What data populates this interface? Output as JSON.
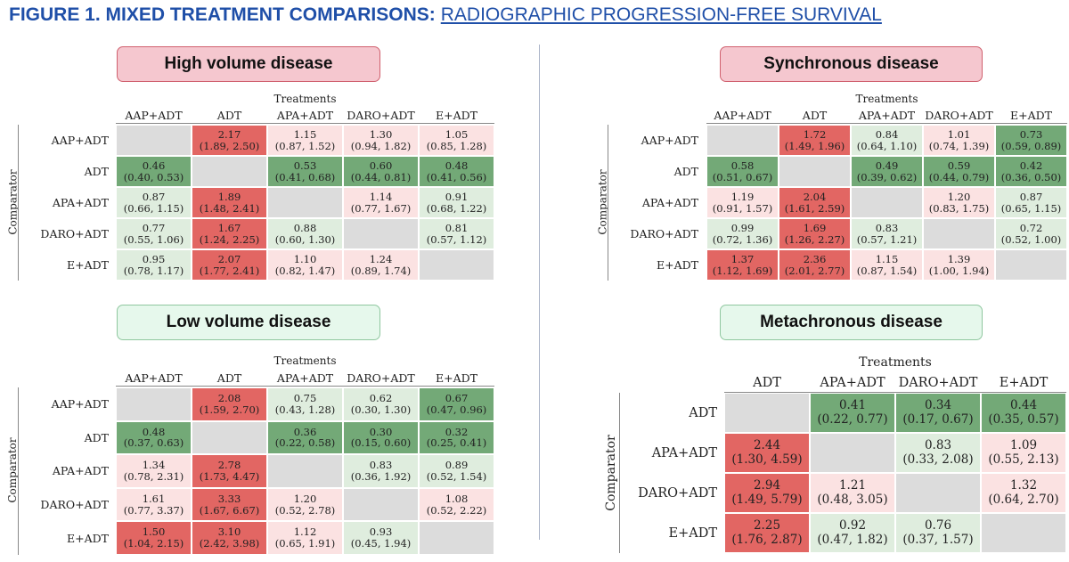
{
  "figure": {
    "title_bold": "FIGURE 1. MIXED TREATMENT COMPARISONS:",
    "title_link": "RADIOGRAPHIC PROGRESSION-FREE SURVIVAL"
  },
  "colors": {
    "significant_higher": "#e26663",
    "nonsignificant_higher": "#fbe2e2",
    "significant_lower": "#73a977",
    "nonsignificant_lower": "#dfedde",
    "diagonal": "#dcdcdc",
    "title_blue": "#1f4fa8"
  },
  "chart_data": [
    {
      "type": "heatmap",
      "title": "High volume disease",
      "xlabel": "Treatments",
      "ylabel": "Comparator",
      "columns": [
        "AAP+ADT",
        "ADT",
        "APA+ADT",
        "DARO+ADT",
        "E+ADT"
      ],
      "rows": [
        {
          "label": "AAP+ADT",
          "cells": [
            null,
            {
              "v": "2.17",
              "ci": "(1.89, 2.50)",
              "c": "red"
            },
            {
              "v": "1.15",
              "ci": "(0.87, 1.52)",
              "c": "lred"
            },
            {
              "v": "1.30",
              "ci": "(0.94, 1.82)",
              "c": "lred"
            },
            {
              "v": "1.05",
              "ci": "(0.85, 1.28)",
              "c": "lred"
            }
          ]
        },
        {
          "label": "ADT",
          "cells": [
            {
              "v": "0.46",
              "ci": "(0.40, 0.53)",
              "c": "green"
            },
            null,
            {
              "v": "0.53",
              "ci": "(0.41, 0.68)",
              "c": "green"
            },
            {
              "v": "0.60",
              "ci": "(0.44, 0.81)",
              "c": "green"
            },
            {
              "v": "0.48",
              "ci": "(0.41, 0.56)",
              "c": "green"
            }
          ]
        },
        {
          "label": "APA+ADT",
          "cells": [
            {
              "v": "0.87",
              "ci": "(0.66, 1.15)",
              "c": "lgreen"
            },
            {
              "v": "1.89",
              "ci": "(1.48, 2.41)",
              "c": "red"
            },
            null,
            {
              "v": "1.14",
              "ci": "(0.77, 1.67)",
              "c": "lred"
            },
            {
              "v": "0.91",
              "ci": "(0.68, 1.22)",
              "c": "lgreen"
            }
          ]
        },
        {
          "label": "DARO+ADT",
          "cells": [
            {
              "v": "0.77",
              "ci": "(0.55, 1.06)",
              "c": "lgreen"
            },
            {
              "v": "1.67",
              "ci": "(1.24, 2.25)",
              "c": "red"
            },
            {
              "v": "0.88",
              "ci": "(0.60, 1.30)",
              "c": "lgreen"
            },
            null,
            {
              "v": "0.81",
              "ci": "(0.57, 1.12)",
              "c": "lgreen"
            }
          ]
        },
        {
          "label": "E+ADT",
          "cells": [
            {
              "v": "0.95",
              "ci": "(0.78, 1.17)",
              "c": "lgreen"
            },
            {
              "v": "2.07",
              "ci": "(1.77, 2.41)",
              "c": "red"
            },
            {
              "v": "1.10",
              "ci": "(0.82, 1.47)",
              "c": "lred"
            },
            {
              "v": "1.24",
              "ci": "(0.89, 1.74)",
              "c": "lred"
            },
            null
          ]
        }
      ]
    },
    {
      "type": "heatmap",
      "title": "Synchronous disease",
      "xlabel": "Treatments",
      "ylabel": "Comparator",
      "columns": [
        "AAP+ADT",
        "ADT",
        "APA+ADT",
        "DARO+ADT",
        "E+ADT"
      ],
      "rows": [
        {
          "label": "AAP+ADT",
          "cells": [
            null,
            {
              "v": "1.72",
              "ci": "(1.49, 1.96)",
              "c": "red"
            },
            {
              "v": "0.84",
              "ci": "(0.64, 1.10)",
              "c": "lgreen"
            },
            {
              "v": "1.01",
              "ci": "(0.74, 1.39)",
              "c": "lred"
            },
            {
              "v": "0.73",
              "ci": "(0.59, 0.89)",
              "c": "green"
            }
          ]
        },
        {
          "label": "ADT",
          "cells": [
            {
              "v": "0.58",
              "ci": "(0.51, 0.67)",
              "c": "green"
            },
            null,
            {
              "v": "0.49",
              "ci": "(0.39, 0.62)",
              "c": "green"
            },
            {
              "v": "0.59",
              "ci": "(0.44, 0.79)",
              "c": "green"
            },
            {
              "v": "0.42",
              "ci": "(0.36, 0.50)",
              "c": "green"
            }
          ]
        },
        {
          "label": "APA+ADT",
          "cells": [
            {
              "v": "1.19",
              "ci": "(0.91, 1.57)",
              "c": "lred"
            },
            {
              "v": "2.04",
              "ci": "(1.61, 2.59)",
              "c": "red"
            },
            null,
            {
              "v": "1.20",
              "ci": "(0.83, 1.75)",
              "c": "lred"
            },
            {
              "v": "0.87",
              "ci": "(0.65, 1.15)",
              "c": "lgreen"
            }
          ]
        },
        {
          "label": "DARO+ADT",
          "cells": [
            {
              "v": "0.99",
              "ci": "(0.72, 1.36)",
              "c": "lgreen"
            },
            {
              "v": "1.69",
              "ci": "(1.26, 2.27)",
              "c": "red"
            },
            {
              "v": "0.83",
              "ci": "(0.57, 1.21)",
              "c": "lgreen"
            },
            null,
            {
              "v": "0.72",
              "ci": "(0.52, 1.00)",
              "c": "lgreen"
            }
          ]
        },
        {
          "label": "E+ADT",
          "cells": [
            {
              "v": "1.37",
              "ci": "(1.12, 1.69)",
              "c": "red"
            },
            {
              "v": "2.36",
              "ci": "(2.01, 2.77)",
              "c": "red"
            },
            {
              "v": "1.15",
              "ci": "(0.87, 1.54)",
              "c": "lred"
            },
            {
              "v": "1.39",
              "ci": "(1.00, 1.94)",
              "c": "lred"
            },
            null
          ]
        }
      ]
    },
    {
      "type": "heatmap",
      "title": "Low volume disease",
      "xlabel": "Treatments",
      "ylabel": "Comparator",
      "columns": [
        "AAP+ADT",
        "ADT",
        "APA+ADT",
        "DARO+ADT",
        "E+ADT"
      ],
      "rows": [
        {
          "label": "AAP+ADT",
          "cells": [
            null,
            {
              "v": "2.08",
              "ci": "(1.59, 2.70)",
              "c": "red"
            },
            {
              "v": "0.75",
              "ci": "(0.43, 1.28)",
              "c": "lgreen"
            },
            {
              "v": "0.62",
              "ci": "(0.30, 1.30)",
              "c": "lgreen"
            },
            {
              "v": "0.67",
              "ci": "(0.47, 0.96)",
              "c": "green"
            }
          ]
        },
        {
          "label": "ADT",
          "cells": [
            {
              "v": "0.48",
              "ci": "(0.37, 0.63)",
              "c": "green"
            },
            null,
            {
              "v": "0.36",
              "ci": "(0.22, 0.58)",
              "c": "green"
            },
            {
              "v": "0.30",
              "ci": "(0.15, 0.60)",
              "c": "green"
            },
            {
              "v": "0.32",
              "ci": "(0.25, 0.41)",
              "c": "green"
            }
          ]
        },
        {
          "label": "APA+ADT",
          "cells": [
            {
              "v": "1.34",
              "ci": "(0.78, 2.31)",
              "c": "lred"
            },
            {
              "v": "2.78",
              "ci": "(1.73, 4.47)",
              "c": "red"
            },
            null,
            {
              "v": "0.83",
              "ci": "(0.36, 1.92)",
              "c": "lgreen"
            },
            {
              "v": "0.89",
              "ci": "(0.52, 1.54)",
              "c": "lgreen"
            }
          ]
        },
        {
          "label": "DARO+ADT",
          "cells": [
            {
              "v": "1.61",
              "ci": "(0.77, 3.37)",
              "c": "lred"
            },
            {
              "v": "3.33",
              "ci": "(1.67, 6.67)",
              "c": "red"
            },
            {
              "v": "1.20",
              "ci": "(0.52, 2.78)",
              "c": "lred"
            },
            null,
            {
              "v": "1.08",
              "ci": "(0.52, 2.22)",
              "c": "lred"
            }
          ]
        },
        {
          "label": "E+ADT",
          "cells": [
            {
              "v": "1.50",
              "ci": "(1.04, 2.15)",
              "c": "red"
            },
            {
              "v": "3.10",
              "ci": "(2.42, 3.98)",
              "c": "red"
            },
            {
              "v": "1.12",
              "ci": "(0.65, 1.91)",
              "c": "lred"
            },
            {
              "v": "0.93",
              "ci": "(0.45, 1.94)",
              "c": "lgreen"
            },
            null
          ]
        }
      ]
    },
    {
      "type": "heatmap",
      "title": "Metachronous disease",
      "xlabel": "Treatments",
      "ylabel": "Comparator",
      "columns": [
        "ADT",
        "APA+ADT",
        "DARO+ADT",
        "E+ADT"
      ],
      "rows": [
        {
          "label": "ADT",
          "cells": [
            null,
            {
              "v": "0.41",
              "ci": "(0.22, 0.77)",
              "c": "green"
            },
            {
              "v": "0.34",
              "ci": "(0.17, 0.67)",
              "c": "green"
            },
            {
              "v": "0.44",
              "ci": "(0.35, 0.57)",
              "c": "green"
            }
          ]
        },
        {
          "label": "APA+ADT",
          "cells": [
            {
              "v": "2.44",
              "ci": "(1.30, 4.59)",
              "c": "red"
            },
            null,
            {
              "v": "0.83",
              "ci": "(0.33, 2.08)",
              "c": "lgreen"
            },
            {
              "v": "1.09",
              "ci": "(0.55, 2.13)",
              "c": "lred"
            }
          ]
        },
        {
          "label": "DARO+ADT",
          "cells": [
            {
              "v": "2.94",
              "ci": "(1.49, 5.79)",
              "c": "red"
            },
            {
              "v": "1.21",
              "ci": "(0.48, 3.05)",
              "c": "lred"
            },
            null,
            {
              "v": "1.32",
              "ci": "(0.64, 2.70)",
              "c": "lred"
            }
          ]
        },
        {
          "label": "E+ADT",
          "cells": [
            {
              "v": "2.25",
              "ci": "(1.76, 2.87)",
              "c": "red"
            },
            {
              "v": "0.92",
              "ci": "(0.47, 1.82)",
              "c": "lgreen"
            },
            {
              "v": "0.76",
              "ci": "(0.37, 1.57)",
              "c": "lgreen"
            },
            null
          ]
        }
      ]
    }
  ]
}
